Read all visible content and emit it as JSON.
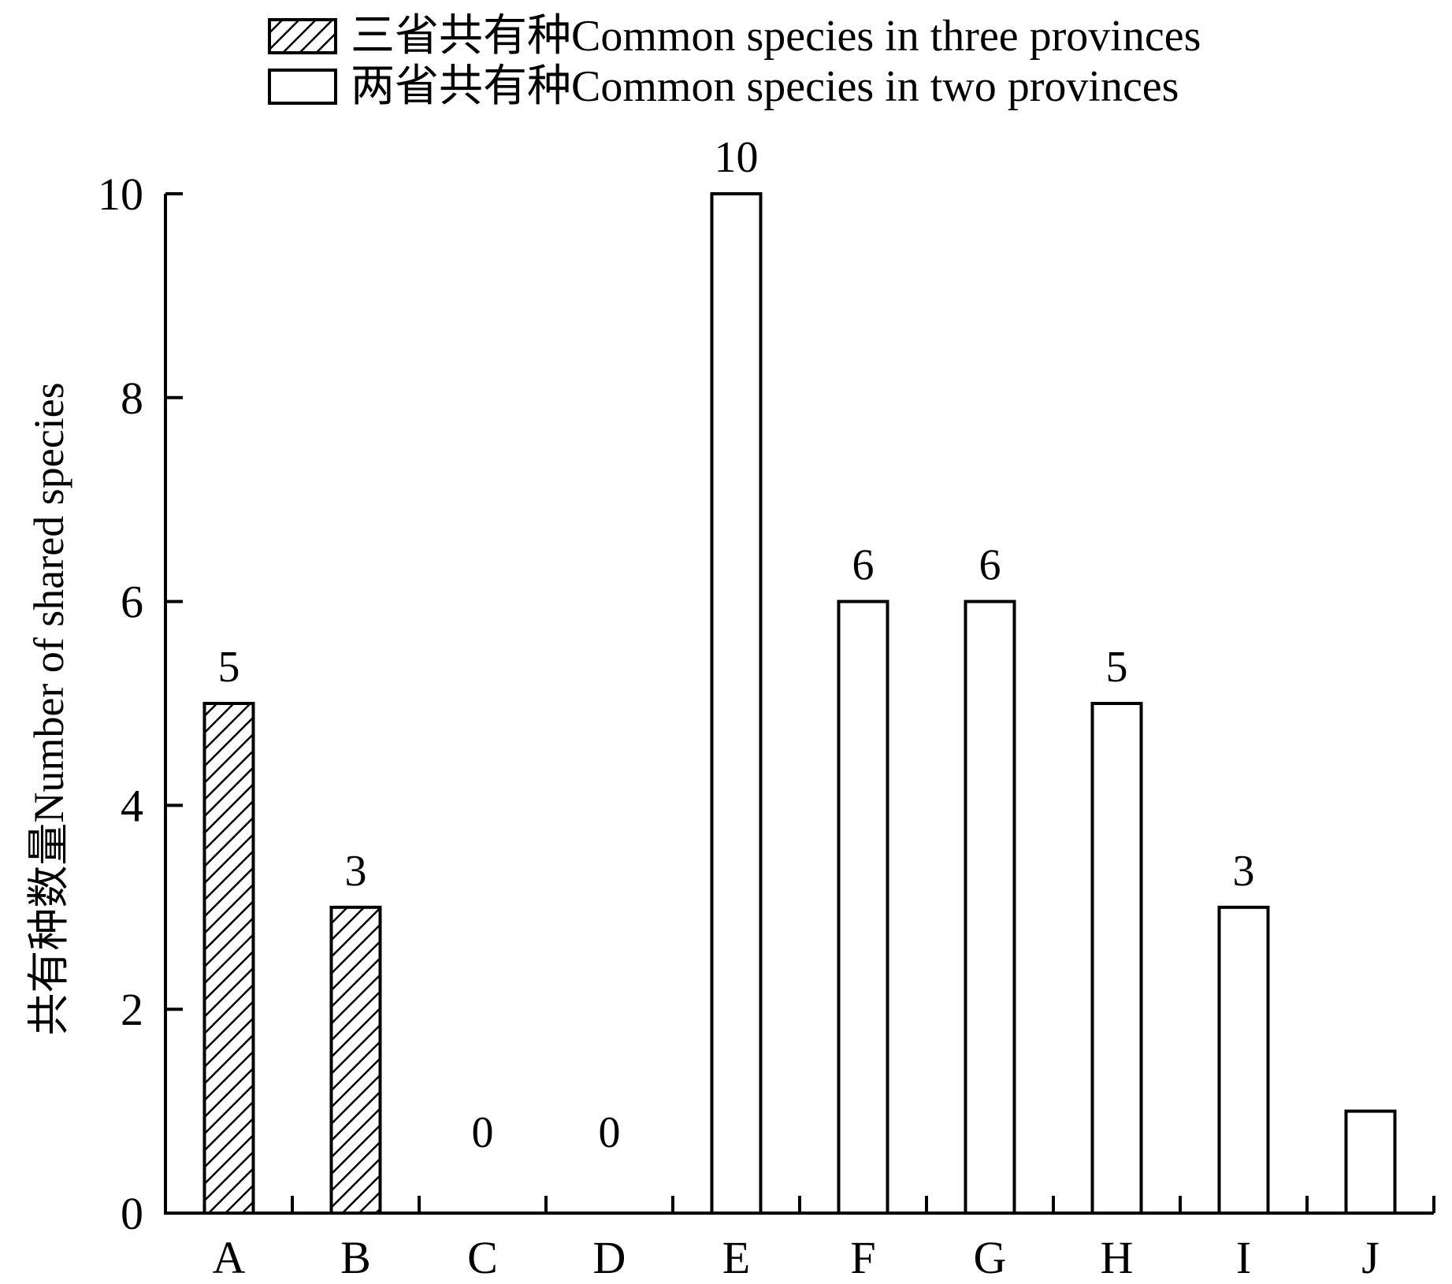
{
  "chart_data": {
    "type": "bar",
    "categories": [
      "A",
      "B",
      "C",
      "D",
      "E",
      "F",
      "G",
      "H",
      "I",
      "J"
    ],
    "values": [
      5,
      3,
      0,
      0,
      10,
      6,
      6,
      5,
      3,
      1
    ],
    "data_labels": [
      "5",
      "3",
      "0",
      "0",
      "10",
      "6",
      "6",
      "5",
      "3",
      ""
    ],
    "series_of_category": [
      0,
      0,
      0,
      0,
      1,
      1,
      1,
      1,
      1,
      1
    ],
    "series": [
      {
        "name": "三省共有种Common species in three provinces",
        "fill": "hatched"
      },
      {
        "name": "两省共有种Common species in two provinces",
        "fill": "white"
      }
    ],
    "title": "",
    "xlabel": "",
    "ylabel": "共有种数量Number of shared species",
    "ylim": [
      0,
      10
    ],
    "yticks": [
      0,
      2,
      4,
      6,
      8,
      10
    ],
    "grid": false,
    "legend_position": "top",
    "colors": {
      "stroke": "#000000",
      "background": "#ffffff"
    }
  }
}
